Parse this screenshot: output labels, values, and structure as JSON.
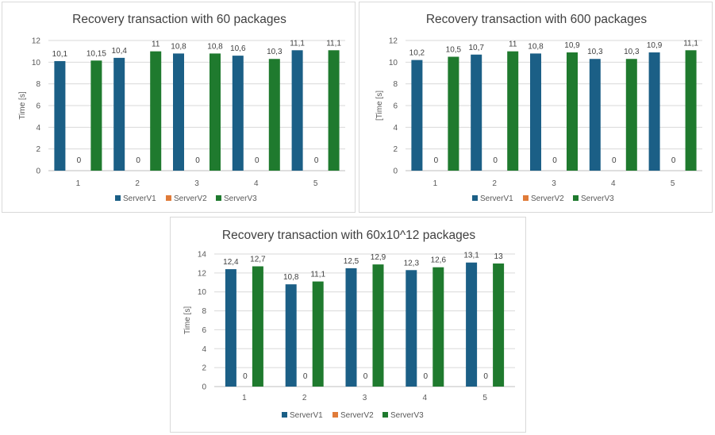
{
  "colors": {
    "ServerV1": "#1b5f86",
    "ServerV2": "#e07b39",
    "ServerV3": "#1f7a2e",
    "grid": "#d9d9d9",
    "axis": "#bfbfbf"
  },
  "chart_data": [
    {
      "type": "bar",
      "title": "Recovery transaction with 60 packages",
      "ylabel": "Time [s]",
      "xlabel": "",
      "categories": [
        "1",
        "2",
        "3",
        "4",
        "5"
      ],
      "ylim": [
        0,
        12
      ],
      "yticks": [
        0,
        2,
        4,
        6,
        8,
        10,
        12
      ],
      "grid": true,
      "legend": "bottom",
      "series": [
        {
          "name": "ServerV1",
          "values": [
            10.1,
            10.4,
            10.8,
            10.6,
            11.1
          ],
          "labels": [
            "10,1",
            "10,4",
            "10,8",
            "10,6",
            "11,1"
          ]
        },
        {
          "name": "ServerV2",
          "values": [
            0,
            0,
            0,
            0,
            0
          ],
          "labels": [
            "0",
            "0",
            "0",
            "0",
            "0"
          ]
        },
        {
          "name": "ServerV3",
          "values": [
            10.15,
            11,
            10.8,
            10.3,
            11.1
          ],
          "labels": [
            "10,15",
            "11",
            "10,8",
            "10,3",
            "11,1"
          ]
        }
      ]
    },
    {
      "type": "bar",
      "title": "Recovery transaction with 600 packages",
      "ylabel": "[Time [s]",
      "xlabel": "",
      "categories": [
        "1",
        "2",
        "3",
        "4",
        "5"
      ],
      "ylim": [
        0,
        12
      ],
      "yticks": [
        0,
        2,
        4,
        6,
        8,
        10,
        12
      ],
      "grid": true,
      "legend": "bottom",
      "series": [
        {
          "name": "ServerV1",
          "values": [
            10.2,
            10.7,
            10.8,
            10.3,
            10.9
          ],
          "labels": [
            "10,2",
            "10,7",
            "10,8",
            "10,3",
            "10,9"
          ]
        },
        {
          "name": "ServerV2",
          "values": [
            0,
            0,
            0,
            0,
            0
          ],
          "labels": [
            "0",
            "0",
            "0",
            "0",
            "0"
          ]
        },
        {
          "name": "ServerV3",
          "values": [
            10.5,
            11,
            10.9,
            10.3,
            11.1
          ],
          "labels": [
            "10,5",
            "11",
            "10,9",
            "10,3",
            "11,1"
          ]
        }
      ]
    },
    {
      "type": "bar",
      "title": "Recovery transaction with 60x10^12 packages",
      "ylabel": "Time [s]",
      "xlabel": "",
      "categories": [
        "1",
        "2",
        "3",
        "4",
        "5"
      ],
      "ylim": [
        0,
        14
      ],
      "yticks": [
        0,
        2,
        4,
        6,
        8,
        10,
        12,
        14
      ],
      "grid": true,
      "legend": "bottom",
      "series": [
        {
          "name": "ServerV1",
          "values": [
            12.4,
            10.8,
            12.5,
            12.3,
            13.1
          ],
          "labels": [
            "12,4",
            "10,8",
            "12,5",
            "12,3",
            "13,1"
          ]
        },
        {
          "name": "ServerV2",
          "values": [
            0,
            0,
            0,
            0,
            0
          ],
          "labels": [
            "0",
            "0",
            "0",
            "0",
            "0"
          ]
        },
        {
          "name": "ServerV3",
          "values": [
            12.7,
            11.1,
            12.9,
            12.6,
            13
          ],
          "labels": [
            "12,7",
            "11,1",
            "12,9",
            "12,6",
            "13"
          ]
        }
      ]
    }
  ]
}
